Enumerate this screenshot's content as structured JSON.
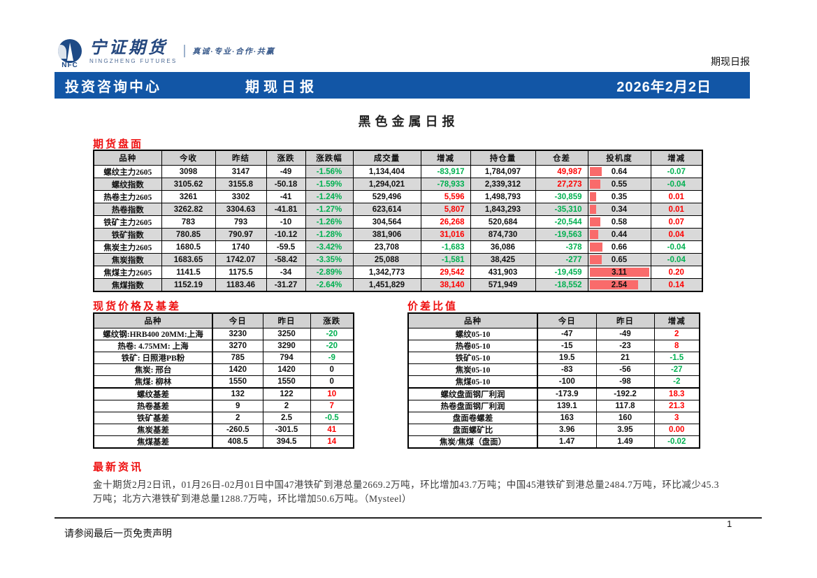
{
  "brand": {
    "abbr": "NFC",
    "name_cn": "宁证期货",
    "name_en": "NINGZHENG FUTURES",
    "tagline": "真诚·专业·合作·共赢"
  },
  "corner_label": "期现日报",
  "banner": {
    "left": "投资咨询中心",
    "center": "期现日报",
    "date": "2026年2月2日"
  },
  "report_title": "黑色金属日报",
  "colors": {
    "banner_blue": "#1256a6",
    "section_red": "#ee1111",
    "up_red": "#fe0000",
    "down_green": "#00b050",
    "row_gray": "#d9d9d9",
    "spec_bar": "#f96b6b"
  },
  "futures": {
    "heading": "期货盘面",
    "columns": [
      "品种",
      "今收",
      "昨结",
      "涨跌",
      "涨跌幅",
      "成交量",
      "增减",
      "持仓量",
      "仓差",
      "投机度",
      "增减"
    ],
    "spec_max": 3.11,
    "rows": [
      {
        "name": "螺纹主力2605",
        "close": "3098",
        "prev": "3147",
        "chg": "-49",
        "pct": "-1.56%",
        "pct_cls": "dn",
        "vol": "1,134,404",
        "vol_chg": "-83,917",
        "vol_chg_cls": "dn",
        "oi": "1,784,097",
        "oi_chg": "49,987",
        "oi_chg_cls": "up",
        "spec": "0.64",
        "spec_num": 0.64,
        "spec_chg": "-0.07",
        "spec_chg_cls": "dn"
      },
      {
        "name": "螺纹指数",
        "close": "3105.62",
        "prev": "3155.8",
        "chg": "-50.18",
        "pct": "-1.59%",
        "pct_cls": "dn",
        "vol": "1,294,021",
        "vol_chg": "-78,933",
        "vol_chg_cls": "dn",
        "oi": "2,339,312",
        "oi_chg": "27,273",
        "oi_chg_cls": "up",
        "spec": "0.55",
        "spec_num": 0.55,
        "spec_chg": "-0.04",
        "spec_chg_cls": "dn"
      },
      {
        "name": "热卷主力2605",
        "close": "3261",
        "prev": "3302",
        "chg": "-41",
        "pct": "-1.24%",
        "pct_cls": "dn",
        "vol": "529,496",
        "vol_chg": "5,596",
        "vol_chg_cls": "up",
        "oi": "1,498,793",
        "oi_chg": "-30,859",
        "oi_chg_cls": "dn",
        "spec": "0.35",
        "spec_num": 0.35,
        "spec_chg": "0.01",
        "spec_chg_cls": "up"
      },
      {
        "name": "热卷指数",
        "close": "3262.82",
        "prev": "3304.63",
        "chg": "-41.81",
        "pct": "-1.27%",
        "pct_cls": "dn",
        "vol": "623,614",
        "vol_chg": "5,807",
        "vol_chg_cls": "up",
        "oi": "1,843,293",
        "oi_chg": "-35,310",
        "oi_chg_cls": "dn",
        "spec": "0.34",
        "spec_num": 0.34,
        "spec_chg": "0.01",
        "spec_chg_cls": "up"
      },
      {
        "name": "铁矿主力2605",
        "close": "783",
        "prev": "793",
        "chg": "-10",
        "pct": "-1.26%",
        "pct_cls": "dn",
        "vol": "304,564",
        "vol_chg": "26,268",
        "vol_chg_cls": "up",
        "oi": "520,684",
        "oi_chg": "-20,544",
        "oi_chg_cls": "dn",
        "spec": "0.58",
        "spec_num": 0.58,
        "spec_chg": "0.07",
        "spec_chg_cls": "up"
      },
      {
        "name": "铁矿指数",
        "close": "780.85",
        "prev": "790.97",
        "chg": "-10.12",
        "pct": "-1.28%",
        "pct_cls": "dn",
        "vol": "381,906",
        "vol_chg": "31,016",
        "vol_chg_cls": "up",
        "oi": "874,730",
        "oi_chg": "-19,563",
        "oi_chg_cls": "dn",
        "spec": "0.44",
        "spec_num": 0.44,
        "spec_chg": "0.04",
        "spec_chg_cls": "up"
      },
      {
        "name": "焦炭主力2605",
        "close": "1680.5",
        "prev": "1740",
        "chg": "-59.5",
        "pct": "-3.42%",
        "pct_cls": "dn",
        "vol": "23,708",
        "vol_chg": "-1,683",
        "vol_chg_cls": "dn",
        "oi": "36,086",
        "oi_chg": "-378",
        "oi_chg_cls": "dn",
        "spec": "0.66",
        "spec_num": 0.66,
        "spec_chg": "-0.04",
        "spec_chg_cls": "dn"
      },
      {
        "name": "焦炭指数",
        "close": "1683.65",
        "prev": "1742.07",
        "chg": "-58.42",
        "pct": "-3.35%",
        "pct_cls": "dn",
        "vol": "25,088",
        "vol_chg": "-1,581",
        "vol_chg_cls": "dn",
        "oi": "38,425",
        "oi_chg": "-277",
        "oi_chg_cls": "dn",
        "spec": "0.65",
        "spec_num": 0.65,
        "spec_chg": "-0.04",
        "spec_chg_cls": "dn"
      },
      {
        "name": "焦煤主力2605",
        "close": "1141.5",
        "prev": "1175.5",
        "chg": "-34",
        "pct": "-2.89%",
        "pct_cls": "dn",
        "vol": "1,342,773",
        "vol_chg": "29,542",
        "vol_chg_cls": "up",
        "oi": "431,903",
        "oi_chg": "-19,459",
        "oi_chg_cls": "dn",
        "spec": "3.11",
        "spec_num": 3.11,
        "spec_chg": "0.20",
        "spec_chg_cls": "up"
      },
      {
        "name": "焦煤指数",
        "close": "1152.19",
        "prev": "1183.46",
        "chg": "-31.27",
        "pct": "-2.64%",
        "pct_cls": "dn",
        "vol": "1,451,829",
        "vol_chg": "38,140",
        "vol_chg_cls": "up",
        "oi": "571,949",
        "oi_chg": "-18,552",
        "oi_chg_cls": "dn",
        "spec": "2.54",
        "spec_num": 2.54,
        "spec_chg": "0.14",
        "spec_chg_cls": "up"
      }
    ]
  },
  "spot": {
    "heading": "现货价格及基差",
    "columns": [
      "品种",
      "今日",
      "昨日",
      "涨跌"
    ],
    "rows": [
      {
        "name": "螺纹钢:HRB400 20MM:上海",
        "today": "3230",
        "yesterday": "3250",
        "chg": "-20",
        "chg_cls": "dn",
        "sep": false
      },
      {
        "name": "热卷: 4.75MM: 上海",
        "today": "3270",
        "yesterday": "3290",
        "chg": "-20",
        "chg_cls": "dn",
        "sep": false
      },
      {
        "name": "铁矿: 日照港PB粉",
        "today": "785",
        "yesterday": "794",
        "chg": "-9",
        "chg_cls": "dn",
        "sep": false
      },
      {
        "name": "焦炭: 邢台",
        "today": "1420",
        "yesterday": "1420",
        "chg": "0",
        "chg_cls": "",
        "sep": false
      },
      {
        "name": "焦煤: 柳林",
        "today": "1550",
        "yesterday": "1550",
        "chg": "0",
        "chg_cls": "",
        "sep": false
      },
      {
        "name": "螺纹基差",
        "today": "132",
        "yesterday": "122",
        "chg": "10",
        "chg_cls": "up",
        "sep": true
      },
      {
        "name": "热卷基差",
        "today": "9",
        "yesterday": "2",
        "chg": "7",
        "chg_cls": "up",
        "sep": false
      },
      {
        "name": "铁矿基差",
        "today": "2",
        "yesterday": "2.5",
        "chg": "-0.5",
        "chg_cls": "dn",
        "sep": false
      },
      {
        "name": "焦炭基差",
        "today": "-260.5",
        "yesterday": "-301.5",
        "chg": "41",
        "chg_cls": "up",
        "sep": false
      },
      {
        "name": "焦煤基差",
        "today": "408.5",
        "yesterday": "394.5",
        "chg": "14",
        "chg_cls": "up",
        "sep": false
      }
    ]
  },
  "spread": {
    "heading": "价差比值",
    "columns": [
      "品种",
      "今日",
      "昨日",
      "增减"
    ],
    "rows": [
      {
        "name": "螺纹05-10",
        "today": "-47",
        "yesterday": "-49",
        "chg": "2",
        "chg_cls": "up",
        "sep": false
      },
      {
        "name": "热卷05-10",
        "today": "-15",
        "yesterday": "-23",
        "chg": "8",
        "chg_cls": "up",
        "sep": false
      },
      {
        "name": "铁矿05-10",
        "today": "19.5",
        "yesterday": "21",
        "chg": "-1.5",
        "chg_cls": "dn",
        "sep": false
      },
      {
        "name": "焦炭05-10",
        "today": "-83",
        "yesterday": "-56",
        "chg": "-27",
        "chg_cls": "dn",
        "sep": false
      },
      {
        "name": "焦煤05-10",
        "today": "-100",
        "yesterday": "-98",
        "chg": "-2",
        "chg_cls": "dn",
        "sep": false
      },
      {
        "name": "螺纹盘面钢厂利润",
        "today": "-173.9",
        "yesterday": "-192.2",
        "chg": "18.3",
        "chg_cls": "up",
        "sep": true
      },
      {
        "name": "热卷盘面钢厂利润",
        "today": "139.1",
        "yesterday": "117.8",
        "chg": "21.3",
        "chg_cls": "up",
        "sep": false
      },
      {
        "name": "盘面卷螺差",
        "today": "163",
        "yesterday": "160",
        "chg": "3",
        "chg_cls": "up",
        "sep": false
      },
      {
        "name": "盘面螺矿比",
        "today": "3.96",
        "yesterday": "3.95",
        "chg": "0.00",
        "chg_cls": "up",
        "sep": false
      },
      {
        "name": "焦炭/焦煤（盘面）",
        "today": "1.47",
        "yesterday": "1.49",
        "chg": "-0.02",
        "chg_cls": "dn",
        "sep": false
      }
    ]
  },
  "news": {
    "heading": "最新资讯",
    "text": "金十期货2月2日讯，01月26日-02月01日中国47港铁矿到港总量2669.2万吨，环比增加43.7万吨；中国45港铁矿到港总量2484.7万吨，环比减少45.3万吨；北方六港铁矿到港总量1288.7万吨，环比增加50.6万吨。（Mysteel）"
  },
  "footer": {
    "disclaimer": "请参阅最后一页免责声明",
    "page_number": "1"
  }
}
